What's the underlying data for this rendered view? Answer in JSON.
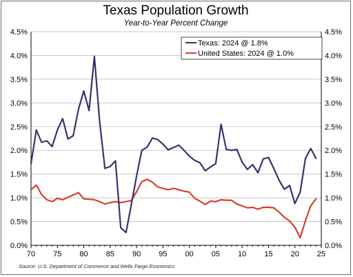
{
  "chart_data": {
    "type": "line",
    "title": "Texas Population Growth",
    "subtitle": "Year-to-Year Percent Change",
    "source": "Source: U.S. Department of Commerce and Wells Fargo Economics",
    "ylim": [
      0,
      4.5
    ],
    "xlim": [
      1970,
      2025
    ],
    "y_ticks": [
      0,
      0.5,
      1.0,
      1.5,
      2.0,
      2.5,
      3.0,
      3.5,
      4.0,
      4.5
    ],
    "y_tick_labels": [
      "0.0%",
      "0.5%",
      "1.0%",
      "1.5%",
      "2.0%",
      "2.5%",
      "3.0%",
      "3.5%",
      "4.0%",
      "4.5%"
    ],
    "x_ticks": [
      1970,
      1975,
      1980,
      1985,
      1990,
      1995,
      2000,
      2005,
      2010,
      2015,
      2020,
      2025
    ],
    "x_tick_labels": [
      "70",
      "75",
      "80",
      "85",
      "90",
      "95",
      "00",
      "05",
      "10",
      "15",
      "20",
      "25"
    ],
    "grid": "horizontal",
    "legend_position": "top-right",
    "x": [
      1970,
      1971,
      1972,
      1973,
      1974,
      1975,
      1976,
      1977,
      1978,
      1979,
      1980,
      1981,
      1982,
      1983,
      1984,
      1985,
      1986,
      1987,
      1988,
      1989,
      1990,
      1991,
      1992,
      1993,
      1994,
      1995,
      1996,
      1997,
      1998,
      1999,
      2000,
      2001,
      2002,
      2003,
      2004,
      2005,
      2006,
      2007,
      2008,
      2009,
      2010,
      2011,
      2012,
      2013,
      2014,
      2015,
      2016,
      2017,
      2018,
      2019,
      2020,
      2021,
      2022,
      2023,
      2024
    ],
    "series": [
      {
        "name": "Texas: 2024 @ 1.8%",
        "color": "#33336e",
        "values": [
          1.72,
          2.43,
          2.17,
          2.2,
          2.08,
          2.43,
          2.67,
          2.24,
          2.31,
          2.87,
          3.25,
          2.84,
          3.98,
          2.61,
          1.62,
          1.66,
          1.78,
          0.37,
          0.27,
          0.85,
          1.46,
          2.0,
          2.07,
          2.26,
          2.23,
          2.13,
          2.01,
          2.06,
          2.11,
          2.0,
          1.88,
          1.79,
          1.74,
          1.57,
          1.65,
          1.72,
          2.55,
          2.02,
          2.0,
          2.02,
          1.75,
          1.6,
          1.7,
          1.53,
          1.82,
          1.85,
          1.62,
          1.37,
          1.18,
          1.26,
          0.88,
          1.12,
          1.83,
          2.04,
          1.83
        ]
      },
      {
        "name": "United States: 2024 @ 1.0%",
        "color": "#d6402b",
        "values": [
          1.17,
          1.27,
          1.07,
          0.96,
          0.92,
          0.99,
          0.96,
          1.01,
          1.06,
          1.11,
          0.98,
          0.97,
          0.96,
          0.92,
          0.87,
          0.9,
          0.92,
          0.9,
          0.92,
          0.94,
          1.13,
          1.34,
          1.39,
          1.33,
          1.23,
          1.2,
          1.17,
          1.2,
          1.17,
          1.14,
          1.12,
          0.99,
          0.93,
          0.86,
          0.93,
          0.92,
          0.96,
          0.95,
          0.95,
          0.87,
          0.83,
          0.79,
          0.8,
          0.76,
          0.8,
          0.8,
          0.79,
          0.7,
          0.59,
          0.51,
          0.38,
          0.16,
          0.52,
          0.83,
          0.98
        ]
      }
    ]
  }
}
